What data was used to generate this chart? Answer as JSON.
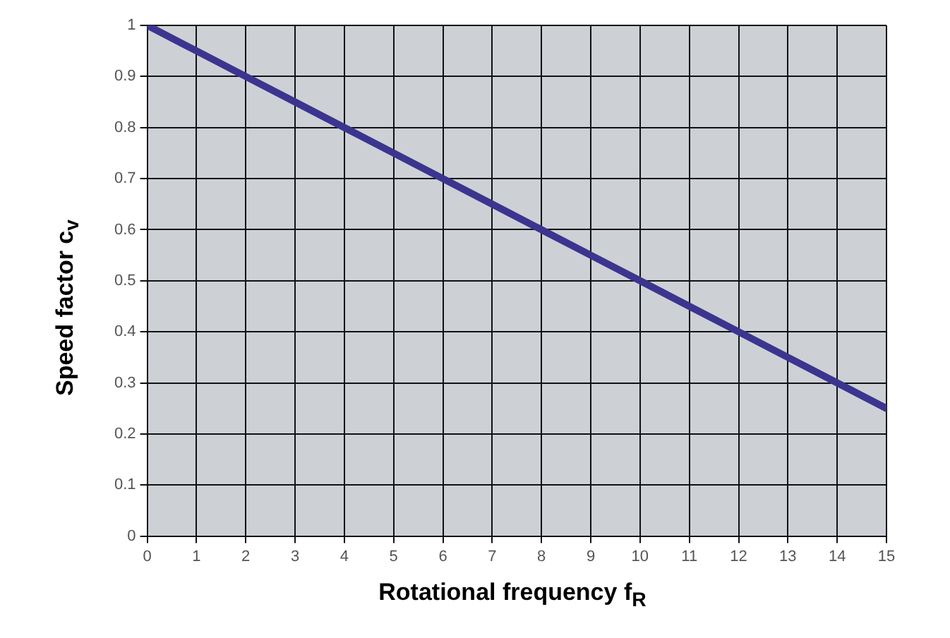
{
  "chart_data": {
    "type": "line",
    "xlabel": "Rotational frequency f$_{R}$",
    "ylabel": "Speed factor c$_{v}$",
    "x": [
      0,
      1,
      2,
      3,
      4,
      5,
      6,
      7,
      8,
      9,
      10,
      11,
      12,
      13,
      14,
      15
    ],
    "series": [
      {
        "color": "#3b358f",
        "values": [
          1,
          0.95,
          0.9,
          0.85,
          0.8,
          0.75,
          0.7,
          0.65,
          0.6,
          0.55,
          0.5,
          0.45,
          0.4,
          0.35,
          0.3,
          0.25
        ]
      }
    ],
    "xlim": [
      0,
      15
    ],
    "xticks": [
      0,
      1,
      2,
      3,
      4,
      5,
      6,
      7,
      8,
      9,
      10,
      11,
      12,
      13,
      14,
      15
    ],
    "ylim": [
      0,
      1
    ],
    "yticks": [
      0,
      0.1,
      0.2,
      0.3,
      0.4,
      0.5,
      0.6,
      0.7,
      0.8,
      0.9,
      1
    ],
    "grid": true,
    "legend": false,
    "marker": "none",
    "line_style": "solid"
  }
}
